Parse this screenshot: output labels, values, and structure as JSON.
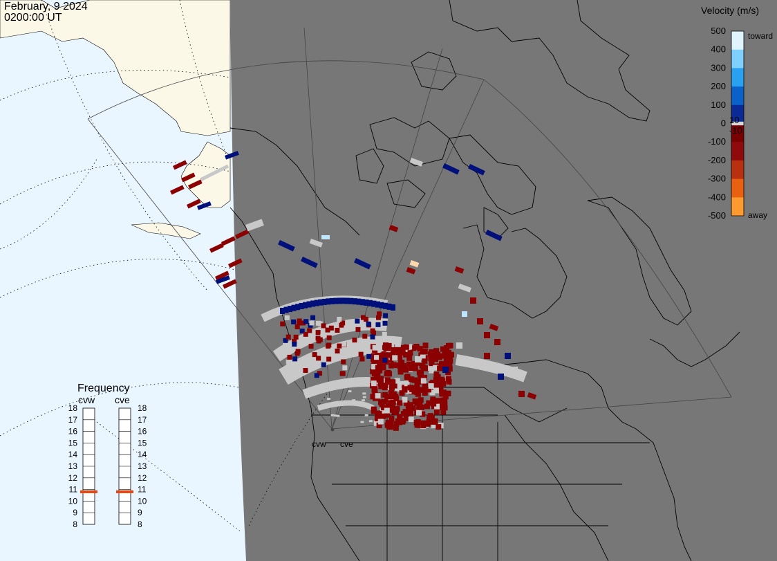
{
  "header": {
    "date": "February, 9 2024",
    "time": "0200:00 UT"
  },
  "colors": {
    "ocean": "#e9f5ff",
    "land_day": "#fbf8e8",
    "night": "#777777",
    "ground_scatter": "#c8c8c8",
    "coastline": "#000000",
    "fov_outline": "#444444"
  },
  "velocity_legend": {
    "title": "Velocity (m/s)",
    "ticks": [
      "500",
      "400",
      "300",
      "200",
      "100",
      "0",
      "-100",
      "-200",
      "-300",
      "-400",
      "-500"
    ],
    "small_labels": [
      "10",
      "-10"
    ],
    "toward_label": "toward",
    "away_label": "away",
    "scale": [
      {
        "v": 500,
        "color": "#e0f4ff"
      },
      {
        "v": 400,
        "color": "#7fcfff"
      },
      {
        "v": 300,
        "color": "#2aa0f0"
      },
      {
        "v": 200,
        "color": "#0a62c8"
      },
      {
        "v": 100,
        "color": "#0a2a95"
      },
      {
        "v": 10,
        "color": "#00107a"
      },
      {
        "v": -10,
        "color": "#7a0000"
      },
      {
        "v": -100,
        "color": "#8f0b0b"
      },
      {
        "v": -200,
        "color": "#b83010"
      },
      {
        "v": -300,
        "color": "#e86010"
      },
      {
        "v": -400,
        "color": "#ff9a30"
      },
      {
        "v": -500,
        "color": "#ffd8b0"
      }
    ]
  },
  "frequency_legend": {
    "title": "Frequency",
    "radars": [
      {
        "name": "cvw",
        "value_mhz": 10.8
      },
      {
        "name": "cve",
        "value_mhz": 10.8
      }
    ],
    "ticks": [
      "18",
      "17",
      "16",
      "15",
      "14",
      "13",
      "12",
      "11",
      "10",
      "9",
      "8"
    ]
  },
  "radar_sites": [
    "cvw",
    "cve"
  ]
}
